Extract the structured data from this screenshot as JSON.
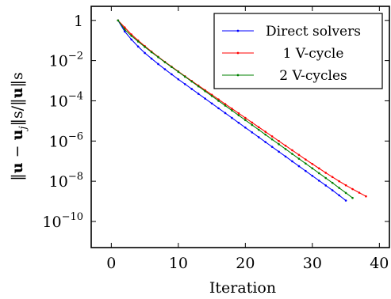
{
  "chart_data": {
    "type": "line",
    "xlabel": "Iteration",
    "ylabel": "‖u − u_j‖s/‖u‖s",
    "ylabel_parts": {
      "norm_open": "‖",
      "u": "u",
      "minus": " − ",
      "uj_base": "u",
      "uj_sub": "j",
      "norm_close_s": "‖s/‖",
      "u2": "u",
      "norm_end": "‖s"
    },
    "y_scale": "log",
    "xlim": [
      -3,
      41.5
    ],
    "ylim_log10": [
      -11.3,
      0.7
    ],
    "x_ticks": [
      0,
      10,
      20,
      30,
      40
    ],
    "x_tick_labels": [
      "0",
      "10",
      "20",
      "30",
      "40"
    ],
    "y_ticks_log10": [
      0,
      -2,
      -4,
      -6,
      -8,
      -10
    ],
    "y_tick_labels": [
      {
        "base": "1",
        "exp": ""
      },
      {
        "base": "10",
        "exp": "−2"
      },
      {
        "base": "10",
        "exp": "−4"
      },
      {
        "base": "10",
        "exp": "−6"
      },
      {
        "base": "10",
        "exp": "−8"
      },
      {
        "base": "10",
        "exp": "−10"
      }
    ],
    "legend_position": "top-right",
    "series": [
      {
        "name": "Direct solvers",
        "color": "#0000ff",
        "x": [
          1,
          2,
          3,
          4,
          5,
          6,
          7,
          8,
          9,
          10,
          11,
          12,
          13,
          14,
          15,
          16,
          17,
          18,
          19,
          20,
          21,
          22,
          23,
          24,
          25,
          26,
          27,
          28,
          29,
          30,
          31,
          32,
          33,
          34,
          35
        ],
        "log10_y": [
          0,
          -0.55,
          -0.95,
          -1.3,
          -1.62,
          -1.9,
          -2.17,
          -2.43,
          -2.68,
          -2.93,
          -3.17,
          -3.41,
          -3.65,
          -3.89,
          -4.13,
          -4.37,
          -4.61,
          -4.85,
          -5.09,
          -5.33,
          -5.57,
          -5.81,
          -6.05,
          -6.29,
          -6.53,
          -6.77,
          -7.01,
          -7.25,
          -7.49,
          -7.73,
          -7.97,
          -8.21,
          -8.45,
          -8.7,
          -8.96
        ]
      },
      {
        "name": "1 V-cycle",
        "color": "#ff0000",
        "x": [
          1,
          2,
          3,
          4,
          5,
          6,
          7,
          8,
          9,
          10,
          11,
          12,
          13,
          14,
          15,
          16,
          17,
          18,
          19,
          20,
          21,
          22,
          23,
          24,
          25,
          26,
          27,
          28,
          29,
          30,
          31,
          32,
          33,
          34,
          35,
          36,
          37,
          38
        ],
        "log10_y": [
          0,
          -0.35,
          -0.7,
          -1.0,
          -1.28,
          -1.55,
          -1.81,
          -2.06,
          -2.3,
          -2.54,
          -2.78,
          -3.01,
          -3.24,
          -3.47,
          -3.7,
          -3.93,
          -4.16,
          -4.39,
          -4.62,
          -4.85,
          -5.08,
          -5.31,
          -5.54,
          -5.77,
          -6.0,
          -6.23,
          -6.46,
          -6.69,
          -6.92,
          -7.14,
          -7.36,
          -7.58,
          -7.79,
          -8.0,
          -8.2,
          -8.39,
          -8.57,
          -8.75
        ]
      },
      {
        "name": "2 V-cycles",
        "color": "#008000",
        "x": [
          1,
          2,
          3,
          4,
          5,
          6,
          7,
          8,
          9,
          10,
          11,
          12,
          13,
          14,
          15,
          16,
          17,
          18,
          19,
          20,
          21,
          22,
          23,
          24,
          25,
          26,
          27,
          28,
          29,
          30,
          31,
          32,
          33,
          34,
          35,
          36
        ],
        "log10_y": [
          0,
          -0.45,
          -0.77,
          -1.05,
          -1.32,
          -1.58,
          -1.83,
          -2.08,
          -2.32,
          -2.56,
          -2.8,
          -3.04,
          -3.28,
          -3.52,
          -3.76,
          -4.0,
          -4.24,
          -4.48,
          -4.72,
          -4.96,
          -5.2,
          -5.44,
          -5.68,
          -5.92,
          -6.16,
          -6.4,
          -6.64,
          -6.88,
          -7.12,
          -7.36,
          -7.6,
          -7.84,
          -8.08,
          -8.33,
          -8.58,
          -8.83
        ]
      }
    ]
  }
}
